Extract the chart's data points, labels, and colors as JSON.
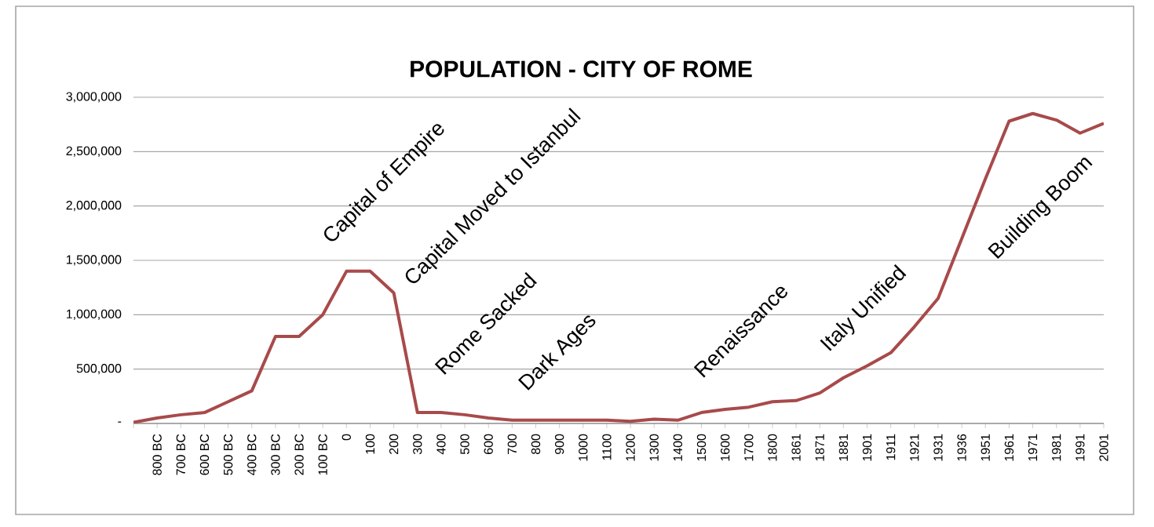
{
  "chart_data": {
    "type": "line",
    "title": "POPULATION - CITY OF ROME",
    "categories": [
      null,
      "800 BC",
      "700 BC",
      "600 BC",
      "500 BC",
      "400 BC",
      "300 BC",
      "200 BC",
      "100 BC",
      "0",
      "100",
      "200",
      "300",
      "400",
      "500",
      "600",
      "700",
      "800",
      "900",
      "1000",
      "1100",
      "1200",
      "1300",
      "1400",
      "1500",
      "1600",
      "1700",
      "1800",
      "1861",
      "1871",
      "1881",
      "1901",
      "1911",
      "1921",
      "1931",
      "1936",
      "1951",
      "1961",
      "1971",
      "1981",
      "1991",
      "2001"
    ],
    "series": [
      {
        "color": "#a84a4a",
        "values": [
          10000,
          50000,
          80000,
          100000,
          200000,
          300000,
          800000,
          800000,
          1000000,
          1400000,
          1400000,
          1200000,
          100000,
          100000,
          80000,
          50000,
          30000,
          30000,
          30000,
          30000,
          30000,
          20000,
          40000,
          30000,
          100000,
          130000,
          150000,
          200000,
          210000,
          280000,
          420000,
          530000,
          650000,
          890000,
          1150000,
          1700000,
          2250000,
          2780000,
          2850000,
          2790000,
          2670000,
          2760000
        ]
      }
    ],
    "ylim": [
      0,
      3000000
    ],
    "yticks": [
      {
        "value": 0,
        "label": "-"
      },
      {
        "value": 500000,
        "label": "500,000"
      },
      {
        "value": 1000000,
        "label": "1,000,000"
      },
      {
        "value": 1500000,
        "label": "1,500,000"
      },
      {
        "value": 2000000,
        "label": "2,000,000"
      },
      {
        "value": 2500000,
        "label": "2,500,000"
      },
      {
        "value": 3000000,
        "label": "3,000,000"
      }
    ],
    "grid": "y",
    "marker": "none",
    "line_style": "solid",
    "annotations": [
      "Capital of Empire",
      "Capital Moved to Istanbul",
      "Rome Sacked",
      "Dark Ages",
      "Renaissance",
      "Italy Unified",
      "Building Boom"
    ]
  }
}
